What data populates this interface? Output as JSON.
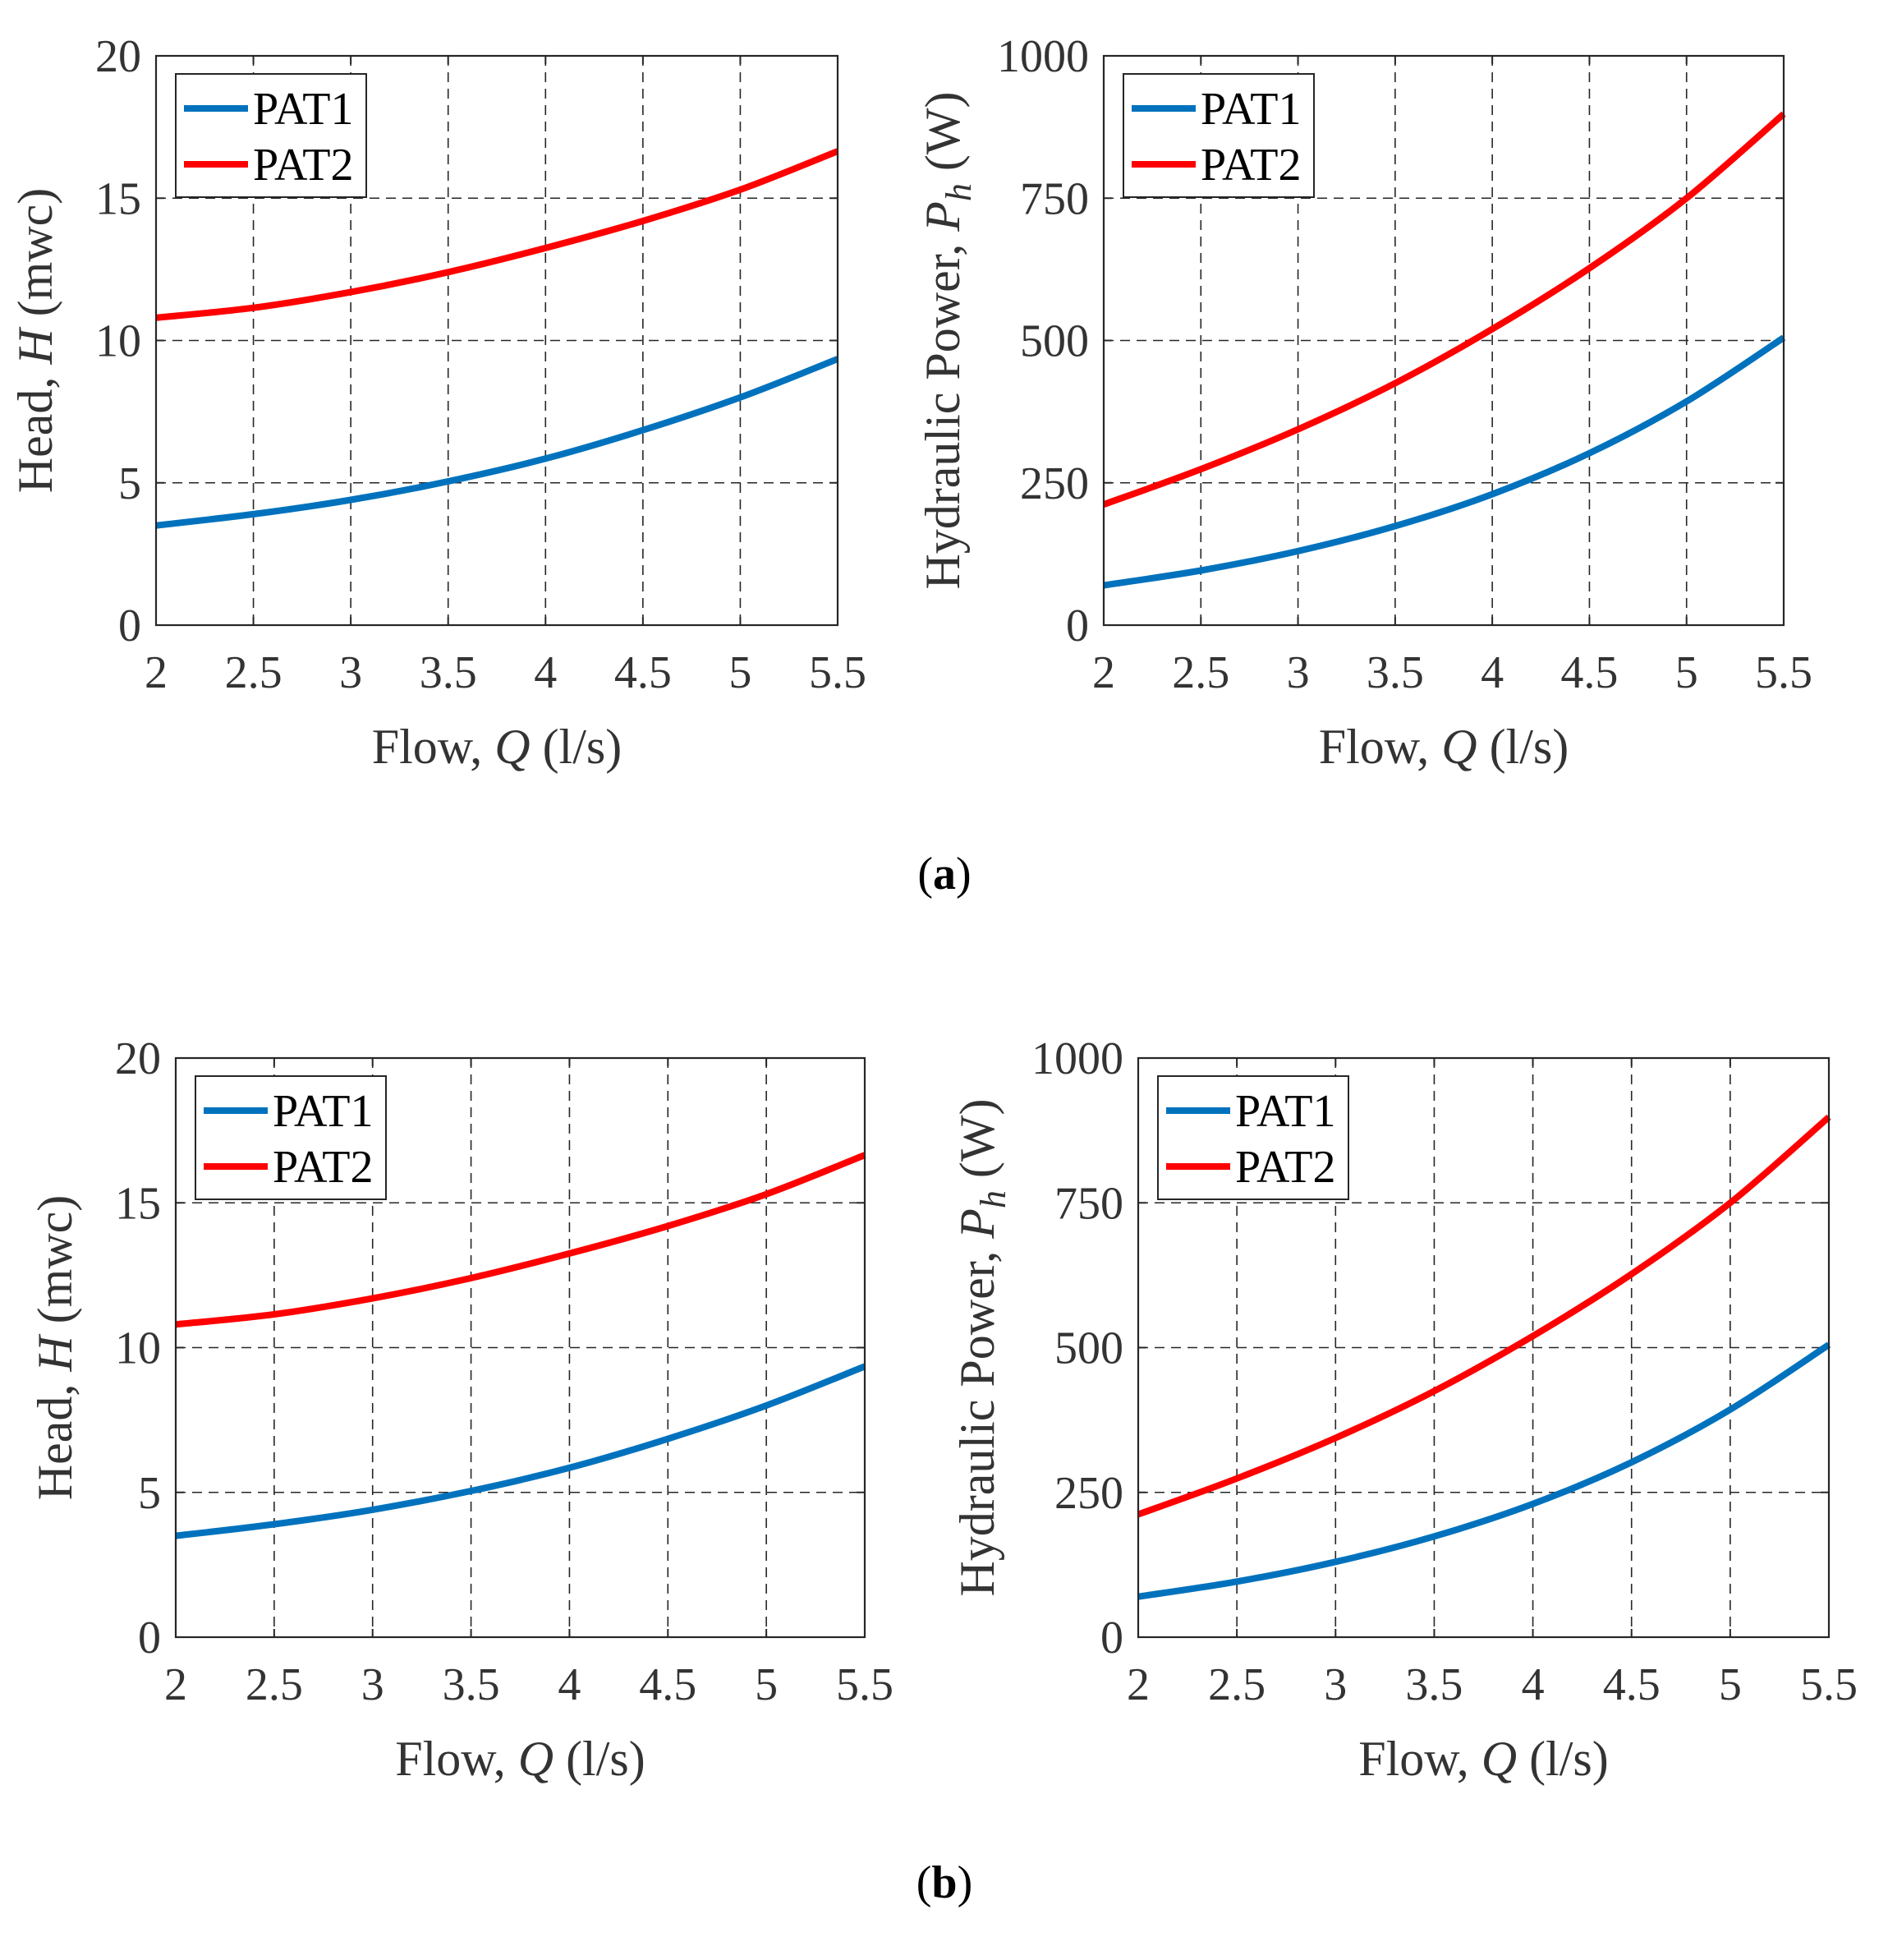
{
  "colors": {
    "PAT1": "#0072BD",
    "PAT2": "#FF0000"
  },
  "panel_labels": [
    "a",
    "b"
  ],
  "chart_data": [
    {
      "id": "a-head",
      "panel": "a",
      "type": "line",
      "title": "",
      "xlabel": "Flow, ",
      "xvar": "Q",
      "xunit": " (l/s)",
      "ylabel": "Head, ",
      "yvar": "H",
      "ysub": "",
      "yunit": " (mwc)",
      "xlim": [
        2,
        5.5
      ],
      "ylim": [
        0,
        20
      ],
      "xticks": [
        "2",
        "2.5",
        "3",
        "3.5",
        "4",
        "4.5",
        "5",
        "5.5"
      ],
      "yticks": [
        "0",
        "5",
        "10",
        "15",
        "20"
      ],
      "grid": true,
      "legend": "top-left",
      "x": [
        2,
        2.5,
        3,
        3.5,
        4,
        4.5,
        5,
        5.5
      ],
      "series": [
        {
          "name": "PAT1",
          "color": "#0072BD",
          "values": [
            3.5,
            3.9,
            4.4,
            5.05,
            5.85,
            6.85,
            8.0,
            9.35
          ]
        },
        {
          "name": "PAT2",
          "color": "#FF0000",
          "values": [
            10.8,
            11.15,
            11.7,
            12.4,
            13.25,
            14.2,
            15.3,
            16.65
          ]
        }
      ]
    },
    {
      "id": "a-power",
      "panel": "a",
      "type": "line",
      "title": "",
      "xlabel": "Flow, ",
      "xvar": "Q",
      "xunit": " (l/s)",
      "ylabel": "Hydraulic Power, ",
      "yvar": "P",
      "ysub": "h",
      "yunit": " (W)",
      "xlim": [
        2,
        5.5
      ],
      "ylim": [
        0,
        1000
      ],
      "xticks": [
        "2",
        "2.5",
        "3",
        "3.5",
        "4",
        "4.5",
        "5",
        "5.5"
      ],
      "yticks": [
        "0",
        "250",
        "500",
        "750",
        "1000"
      ],
      "grid": true,
      "legend": "top-left",
      "x": [
        2,
        2.5,
        3,
        3.5,
        4,
        4.5,
        5,
        5.5
      ],
      "series": [
        {
          "name": "PAT1",
          "color": "#0072BD",
          "values": [
            70,
            96,
            130,
            174,
            230,
            302,
            393,
            505
          ]
        },
        {
          "name": "PAT2",
          "color": "#FF0000",
          "values": [
            212,
            274,
            344,
            425,
            520,
            627,
            750,
            898
          ]
        }
      ]
    },
    {
      "id": "b-head",
      "panel": "b",
      "type": "line",
      "title": "",
      "xlabel": "Flow, ",
      "xvar": "Q",
      "xunit": " (l/s)",
      "ylabel": "Head, ",
      "yvar": "H",
      "ysub": "",
      "yunit": " (mwc)",
      "xlim": [
        2,
        5.5
      ],
      "ylim": [
        0,
        20
      ],
      "xticks": [
        "2",
        "2.5",
        "3",
        "3.5",
        "4",
        "4.5",
        "5",
        "5.5"
      ],
      "yticks": [
        "0",
        "5",
        "10",
        "15",
        "20"
      ],
      "grid": true,
      "legend": "top-left",
      "x": [
        2,
        2.5,
        3,
        3.5,
        4,
        4.5,
        5,
        5.5
      ],
      "series": [
        {
          "name": "PAT1",
          "color": "#0072BD",
          "values": [
            3.5,
            3.9,
            4.4,
            5.05,
            5.85,
            6.85,
            8.0,
            9.35
          ]
        },
        {
          "name": "PAT2",
          "color": "#FF0000",
          "values": [
            10.8,
            11.15,
            11.7,
            12.4,
            13.25,
            14.2,
            15.3,
            16.65
          ]
        }
      ]
    },
    {
      "id": "b-power",
      "panel": "b",
      "type": "line",
      "title": "",
      "xlabel": "Flow, ",
      "xvar": "Q",
      "xunit": " (l/s)",
      "ylabel": "Hydraulic Power, ",
      "yvar": "P",
      "ysub": "h",
      "yunit": " (W)",
      "xlim": [
        2,
        5.5
      ],
      "ylim": [
        0,
        1000
      ],
      "xticks": [
        "2",
        "2.5",
        "3",
        "3.5",
        "4",
        "4.5",
        "5",
        "5.5"
      ],
      "yticks": [
        "0",
        "250",
        "500",
        "750",
        "1000"
      ],
      "grid": true,
      "legend": "top-left",
      "x": [
        2,
        2.5,
        3,
        3.5,
        4,
        4.5,
        5,
        5.5
      ],
      "series": [
        {
          "name": "PAT1",
          "color": "#0072BD",
          "values": [
            70,
            96,
            130,
            174,
            230,
            302,
            393,
            505
          ]
        },
        {
          "name": "PAT2",
          "color": "#FF0000",
          "values": [
            212,
            274,
            344,
            425,
            520,
            627,
            750,
            898
          ]
        }
      ]
    }
  ]
}
